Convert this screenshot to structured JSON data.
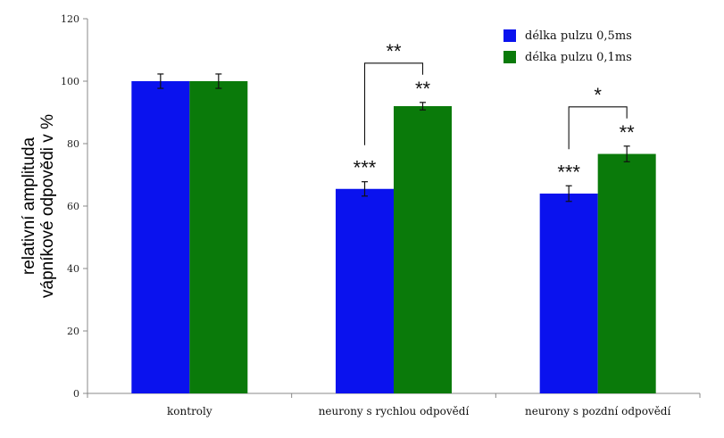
{
  "chart_data": {
    "type": "bar",
    "title": "",
    "xlabel": "",
    "ylabel_lines": [
      "relativní amplituda",
      "vápníkové odpovědi v  %"
    ],
    "ylim": [
      0,
      120
    ],
    "yticks": [
      0,
      20,
      40,
      60,
      80,
      100,
      120
    ],
    "yticks_text": [
      "0",
      "20",
      "40",
      "60",
      "80",
      "100",
      "120"
    ],
    "categories": [
      "kontroly",
      "neurony s rychlou odpovědí",
      "neurony s pozdní odpovědí"
    ],
    "series": [
      {
        "name": "délka pulzu 0,5ms",
        "color": "#0a12ee",
        "values": [
          100,
          65.5,
          64
        ],
        "errors": [
          2.3,
          2.3,
          2.5
        ],
        "annotations": [
          "",
          "***",
          "***"
        ]
      },
      {
        "name": "délka pulzu 0,1ms",
        "color": "#0a7a0a",
        "values": [
          100,
          92,
          76.7
        ],
        "errors": [
          2.3,
          1.2,
          2.5
        ],
        "annotations": [
          "",
          "**",
          "**"
        ]
      }
    ],
    "comparisons": [
      {
        "category": 1,
        "label": "**"
      },
      {
        "category": 2,
        "label": "*"
      }
    ],
    "legend": {
      "position": "top-right"
    },
    "grid": false
  }
}
